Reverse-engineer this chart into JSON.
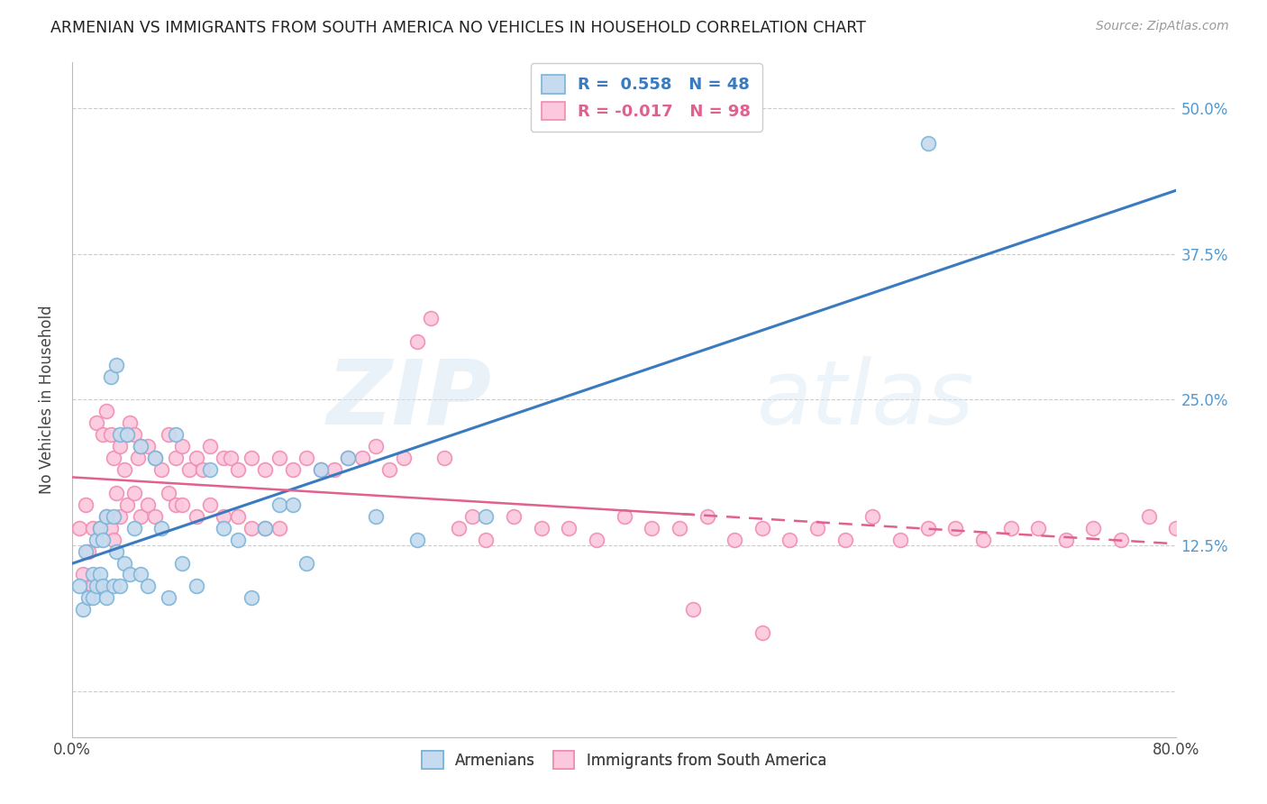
{
  "title": "ARMENIAN VS IMMIGRANTS FROM SOUTH AMERICA NO VEHICLES IN HOUSEHOLD CORRELATION CHART",
  "source": "Source: ZipAtlas.com",
  "ylabel": "No Vehicles in Household",
  "yticks": [
    0.0,
    0.125,
    0.25,
    0.375,
    0.5
  ],
  "ytick_labels": [
    "",
    "12.5%",
    "25.0%",
    "37.5%",
    "50.0%"
  ],
  "xlim": [
    0.0,
    0.8
  ],
  "ylim": [
    -0.04,
    0.54
  ],
  "armenian_R": 0.558,
  "armenian_N": 48,
  "immigrant_R": -0.017,
  "immigrant_N": 98,
  "blue_color": "#7ab4d8",
  "blue_fill": "#c6dbef",
  "pink_color": "#f08cb0",
  "pink_fill": "#fcc8de",
  "line_blue": "#3a7abf",
  "line_pink": "#e06090",
  "watermark_zip": "ZIP",
  "watermark_atlas": "atlas",
  "armenian_x": [
    0.005,
    0.008,
    0.01,
    0.012,
    0.015,
    0.015,
    0.018,
    0.018,
    0.02,
    0.02,
    0.022,
    0.022,
    0.025,
    0.025,
    0.028,
    0.03,
    0.03,
    0.032,
    0.032,
    0.035,
    0.035,
    0.038,
    0.04,
    0.042,
    0.045,
    0.05,
    0.05,
    0.055,
    0.06,
    0.065,
    0.07,
    0.075,
    0.08,
    0.09,
    0.1,
    0.11,
    0.12,
    0.13,
    0.14,
    0.15,
    0.16,
    0.17,
    0.18,
    0.2,
    0.22,
    0.25,
    0.3,
    0.62
  ],
  "armenian_y": [
    0.09,
    0.07,
    0.12,
    0.08,
    0.1,
    0.08,
    0.13,
    0.09,
    0.14,
    0.1,
    0.13,
    0.09,
    0.15,
    0.08,
    0.27,
    0.15,
    0.09,
    0.28,
    0.12,
    0.22,
    0.09,
    0.11,
    0.22,
    0.1,
    0.14,
    0.21,
    0.1,
    0.09,
    0.2,
    0.14,
    0.08,
    0.22,
    0.11,
    0.09,
    0.19,
    0.14,
    0.13,
    0.08,
    0.14,
    0.16,
    0.16,
    0.11,
    0.19,
    0.2,
    0.15,
    0.13,
    0.15,
    0.47
  ],
  "immigrant_x": [
    0.005,
    0.008,
    0.01,
    0.012,
    0.015,
    0.015,
    0.018,
    0.02,
    0.02,
    0.022,
    0.025,
    0.025,
    0.028,
    0.028,
    0.03,
    0.03,
    0.032,
    0.035,
    0.035,
    0.038,
    0.04,
    0.04,
    0.042,
    0.045,
    0.045,
    0.048,
    0.05,
    0.05,
    0.055,
    0.055,
    0.06,
    0.06,
    0.065,
    0.07,
    0.07,
    0.075,
    0.075,
    0.08,
    0.08,
    0.085,
    0.09,
    0.09,
    0.095,
    0.1,
    0.1,
    0.11,
    0.11,
    0.115,
    0.12,
    0.12,
    0.13,
    0.13,
    0.14,
    0.14,
    0.15,
    0.15,
    0.16,
    0.17,
    0.18,
    0.19,
    0.2,
    0.21,
    0.22,
    0.23,
    0.24,
    0.25,
    0.26,
    0.27,
    0.28,
    0.29,
    0.3,
    0.32,
    0.34,
    0.36,
    0.38,
    0.4,
    0.42,
    0.44,
    0.46,
    0.48,
    0.5,
    0.52,
    0.54,
    0.56,
    0.58,
    0.6,
    0.62,
    0.64,
    0.66,
    0.68,
    0.7,
    0.72,
    0.74,
    0.76,
    0.78,
    0.8,
    0.45,
    0.5
  ],
  "immigrant_y": [
    0.14,
    0.1,
    0.16,
    0.12,
    0.14,
    0.09,
    0.23,
    0.14,
    0.09,
    0.22,
    0.24,
    0.15,
    0.22,
    0.14,
    0.2,
    0.13,
    0.17,
    0.21,
    0.15,
    0.19,
    0.22,
    0.16,
    0.23,
    0.22,
    0.17,
    0.2,
    0.21,
    0.15,
    0.21,
    0.16,
    0.2,
    0.15,
    0.19,
    0.22,
    0.17,
    0.2,
    0.16,
    0.21,
    0.16,
    0.19,
    0.2,
    0.15,
    0.19,
    0.21,
    0.16,
    0.2,
    0.15,
    0.2,
    0.19,
    0.15,
    0.2,
    0.14,
    0.19,
    0.14,
    0.2,
    0.14,
    0.19,
    0.2,
    0.19,
    0.19,
    0.2,
    0.2,
    0.21,
    0.19,
    0.2,
    0.3,
    0.32,
    0.2,
    0.14,
    0.15,
    0.13,
    0.15,
    0.14,
    0.14,
    0.13,
    0.15,
    0.14,
    0.14,
    0.15,
    0.13,
    0.14,
    0.13,
    0.14,
    0.13,
    0.15,
    0.13,
    0.14,
    0.14,
    0.13,
    0.14,
    0.14,
    0.13,
    0.14,
    0.13,
    0.15,
    0.14,
    0.07,
    0.05
  ]
}
